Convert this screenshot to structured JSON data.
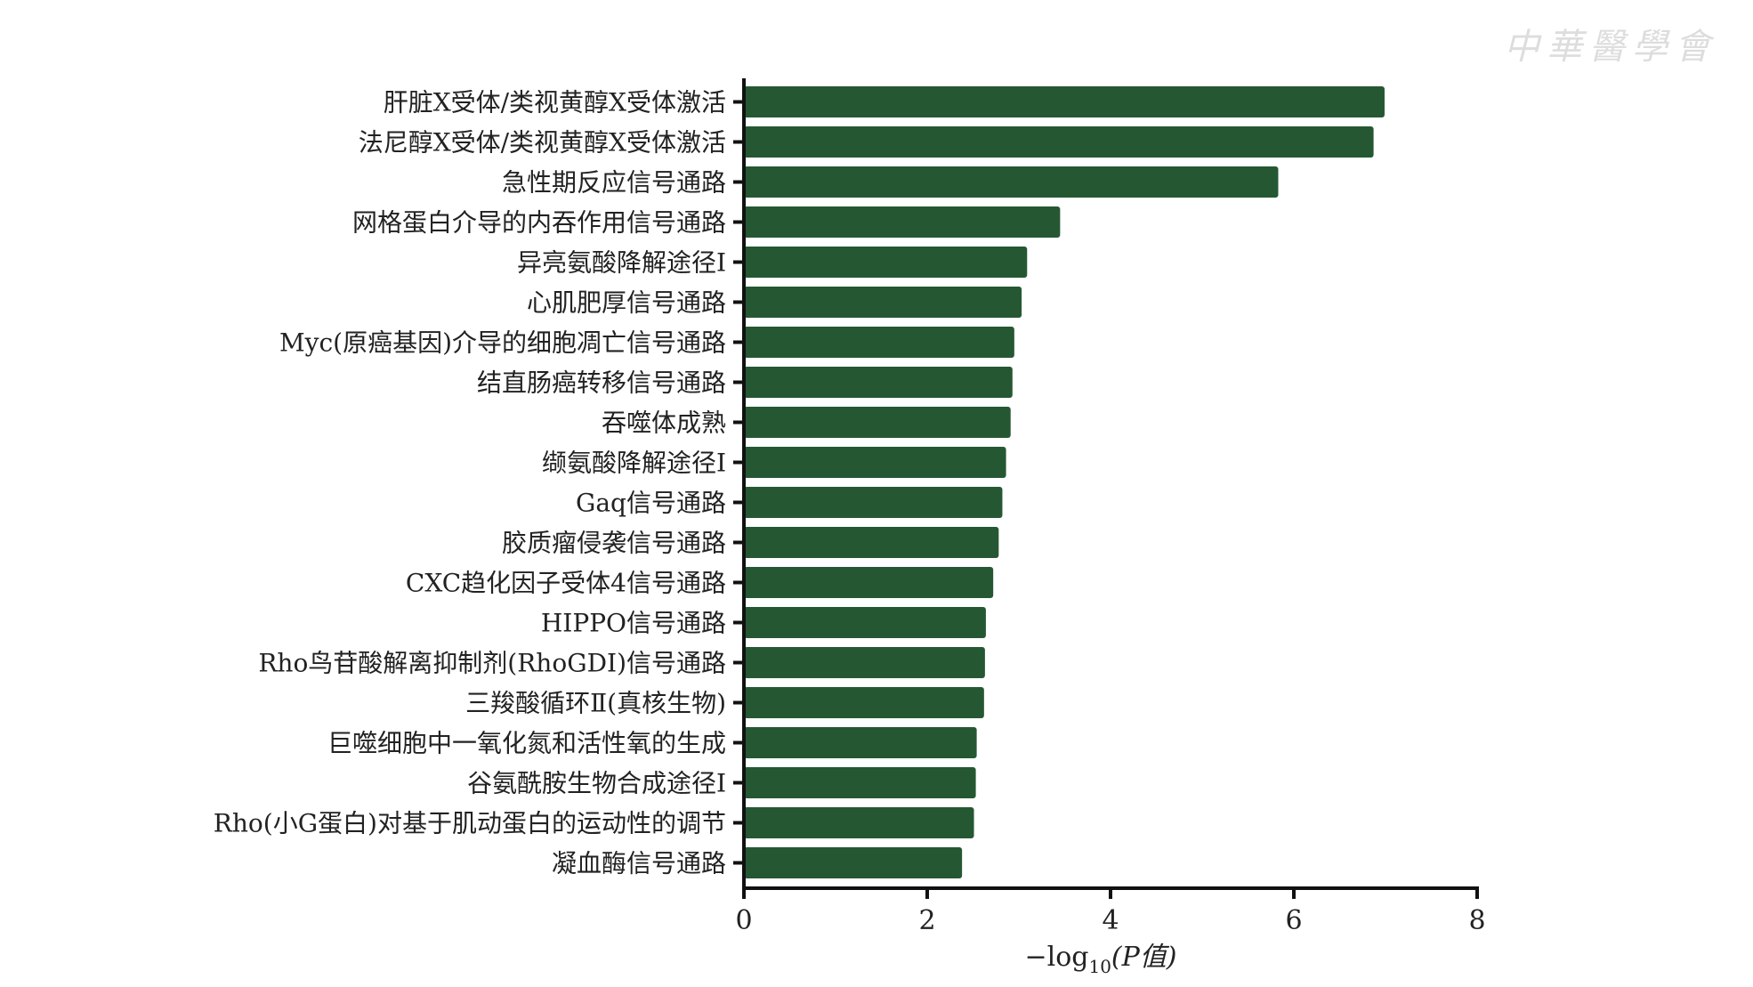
{
  "watermark": "中华医学会",
  "chart_data": {
    "type": "bar",
    "orientation": "horizontal",
    "title": "",
    "xlabel": "−log10(P值)",
    "xlabel_parts": {
      "prefix": "−log",
      "sub": "10",
      "suffix": "(P值)"
    },
    "ylabel": "",
    "xlim": [
      0,
      8
    ],
    "xticks": [
      "0",
      "2",
      "4",
      "6",
      "8"
    ],
    "grid": false,
    "bar_color": "#255832",
    "categories": [
      "肝脏X受体/类视黄醇X受体激活",
      "法尼醇X受体/类视黄醇X受体激活",
      "急性期反应信号通路",
      "网格蛋白介导的内吞作用信号通路",
      "异亮氨酸降解途径Ⅰ",
      "心肌肥厚信号通路",
      "Myc(原癌基因)介导的细胞凋亡信号通路",
      "结直肠癌转移信号通路",
      "吞噬体成熟",
      "缬氨酸降解途径Ⅰ",
      "Gaq信号通路",
      "胶质瘤侵袭信号通路",
      "CXC趋化因子受体4信号通路",
      "HIPPO信号通路",
      "Rho鸟苷酸解离抑制剂(RhoGDI)信号通路",
      "三羧酸循环Ⅱ(真核生物)",
      "巨噬细胞中一氧化氮和活性氧的生成",
      "谷氨酰胺生物合成途径Ⅰ",
      "Rho(小G蛋白)对基于肌动蛋白的运动性的调节",
      "凝血酶信号通路"
    ],
    "values": [
      6.99,
      6.87,
      5.83,
      3.45,
      3.09,
      3.03,
      2.95,
      2.93,
      2.91,
      2.86,
      2.82,
      2.78,
      2.72,
      2.64,
      2.63,
      2.62,
      2.54,
      2.53,
      2.51,
      2.38
    ]
  }
}
